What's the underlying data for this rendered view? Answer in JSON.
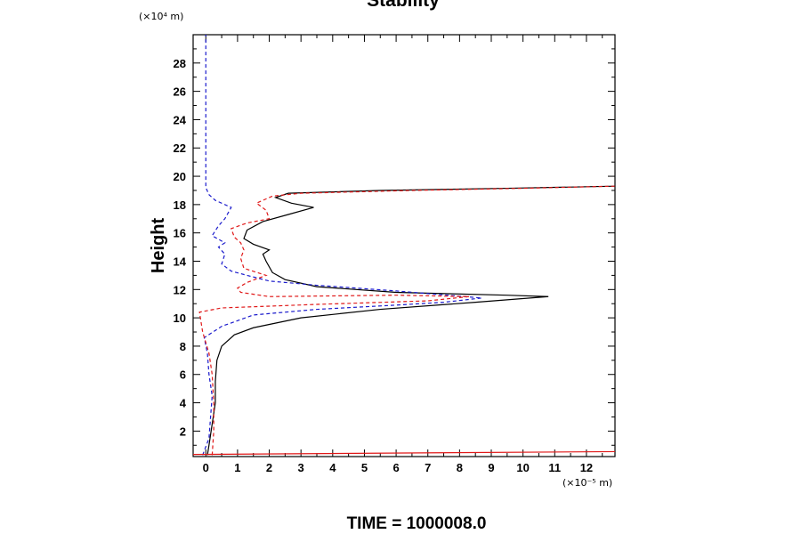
{
  "chart_data": {
    "type": "line",
    "title": "Stability",
    "xlabel": "",
    "ylabel": "Height",
    "x_unit": "(×10⁻⁵ m)",
    "y_unit": "(×10⁴ m)",
    "footer": "TIME = 1000008.0",
    "xlim": [
      -0.4,
      12.9
    ],
    "ylim": [
      0.2,
      30.0
    ],
    "x_ticks": [
      0,
      1,
      2,
      3,
      4,
      5,
      6,
      7,
      8,
      9,
      10,
      11,
      12
    ],
    "x_tick_labels": [
      "0",
      "1",
      "2",
      "3",
      "4",
      "5",
      "6",
      "7",
      "8",
      "9",
      "10",
      "11",
      "12"
    ],
    "y_ticks": [
      2,
      4,
      6,
      8,
      10,
      12,
      14,
      16,
      18,
      20,
      22,
      24,
      26,
      28
    ],
    "y_tick_labels": [
      "2",
      "4",
      "6",
      "8",
      "10",
      "12",
      "14",
      "16",
      "18",
      "20",
      "22",
      "24",
      "26",
      "28"
    ],
    "grid": false,
    "series": [
      {
        "name": "solid-black",
        "color": "#000000",
        "dash": "solid",
        "points": [
          [
            0.05,
            0.3
          ],
          [
            0.1,
            1.0
          ],
          [
            0.2,
            2.5
          ],
          [
            0.3,
            4.0
          ],
          [
            0.3,
            5.5
          ],
          [
            0.35,
            7.0
          ],
          [
            0.5,
            8.0
          ],
          [
            0.9,
            8.8
          ],
          [
            1.5,
            9.3
          ],
          [
            3.0,
            10.0
          ],
          [
            5.5,
            10.6
          ],
          [
            8.5,
            11.1
          ],
          [
            10.8,
            11.5
          ],
          [
            9.5,
            11.6
          ],
          [
            6.0,
            11.8
          ],
          [
            3.5,
            12.2
          ],
          [
            2.5,
            12.7
          ],
          [
            2.1,
            13.2
          ],
          [
            1.9,
            14.0
          ],
          [
            1.8,
            14.5
          ],
          [
            2.0,
            14.8
          ],
          [
            1.5,
            15.2
          ],
          [
            1.2,
            15.6
          ],
          [
            1.3,
            16.2
          ],
          [
            1.8,
            16.8
          ],
          [
            2.6,
            17.3
          ],
          [
            3.4,
            17.8
          ],
          [
            2.7,
            18.1
          ],
          [
            2.2,
            18.5
          ],
          [
            2.6,
            18.8
          ],
          [
            5.5,
            19.0
          ],
          [
            9.5,
            19.15
          ],
          [
            12.9,
            19.3
          ]
        ]
      },
      {
        "name": "dashed-blue",
        "color": "#1a1acc",
        "dash": "dashed",
        "points": [
          [
            -0.1,
            0.3
          ],
          [
            0.1,
            1.5
          ],
          [
            0.15,
            3.0
          ],
          [
            0.2,
            4.5
          ],
          [
            0.1,
            6.0
          ],
          [
            0.05,
            7.5
          ],
          [
            -0.05,
            8.6
          ],
          [
            0.5,
            9.4
          ],
          [
            1.5,
            10.2
          ],
          [
            3.5,
            10.6
          ],
          [
            6.0,
            10.9
          ],
          [
            7.5,
            11.1
          ],
          [
            8.7,
            11.4
          ],
          [
            6.0,
            11.9
          ],
          [
            3.5,
            12.3
          ],
          [
            2.0,
            12.6
          ],
          [
            1.3,
            13.0
          ],
          [
            0.8,
            13.3
          ],
          [
            0.5,
            13.8
          ],
          [
            0.6,
            14.5
          ],
          [
            0.4,
            15.0
          ],
          [
            0.6,
            15.3
          ],
          [
            0.2,
            15.8
          ],
          [
            0.4,
            16.5
          ],
          [
            0.6,
            17.0
          ],
          [
            0.8,
            17.8
          ],
          [
            0.3,
            18.3
          ],
          [
            0.1,
            18.7
          ],
          [
            0.0,
            19.2
          ],
          [
            0.0,
            22.0
          ],
          [
            0.0,
            25.0
          ],
          [
            0.0,
            30.0
          ]
        ]
      },
      {
        "name": "dashed-red",
        "color": "#e01818",
        "dash": "dashed",
        "points": [
          [
            0.2,
            0.3
          ],
          [
            0.25,
            2.0
          ],
          [
            0.25,
            4.0
          ],
          [
            0.2,
            6.0
          ],
          [
            0.1,
            7.5
          ],
          [
            -0.1,
            9.0
          ],
          [
            -0.2,
            10.4
          ],
          [
            0.5,
            10.7
          ],
          [
            3.5,
            10.95
          ],
          [
            7.0,
            11.2
          ],
          [
            8.3,
            11.5
          ],
          [
            6.0,
            11.6
          ],
          [
            2.0,
            11.5
          ],
          [
            1.1,
            11.8
          ],
          [
            1.0,
            12.1
          ],
          [
            1.3,
            12.5
          ],
          [
            1.9,
            13.0
          ],
          [
            1.2,
            13.5
          ],
          [
            1.1,
            14.2
          ],
          [
            1.2,
            14.8
          ],
          [
            1.1,
            15.3
          ],
          [
            0.9,
            15.7
          ],
          [
            0.8,
            16.3
          ],
          [
            1.3,
            16.7
          ],
          [
            2.0,
            17.0
          ],
          [
            1.9,
            17.6
          ],
          [
            1.6,
            18.1
          ],
          [
            2.1,
            18.6
          ],
          [
            3.0,
            18.8
          ],
          [
            6.5,
            19.0
          ],
          [
            10.0,
            19.15
          ],
          [
            12.9,
            19.3
          ]
        ]
      },
      {
        "name": "near-zero-base",
        "color": "#e01818",
        "dash": "solid",
        "points": [
          [
            -0.4,
            0.35
          ],
          [
            12.9,
            0.55
          ]
        ]
      }
    ]
  }
}
